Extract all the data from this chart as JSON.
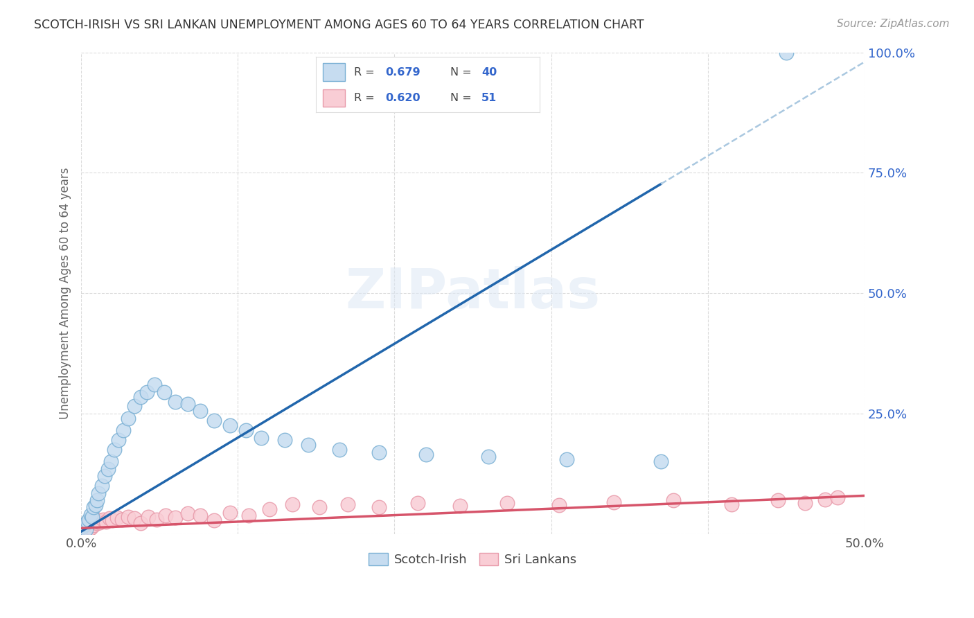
{
  "title": "SCOTCH-IRISH VS SRI LANKAN UNEMPLOYMENT AMONG AGES 60 TO 64 YEARS CORRELATION CHART",
  "source": "Source: ZipAtlas.com",
  "ylabel": "Unemployment Among Ages 60 to 64 years",
  "xlim": [
    0.0,
    0.5
  ],
  "ylim": [
    0.0,
    1.0
  ],
  "watermark": "ZIPatlas",
  "scotch_irish_R": 0.679,
  "scotch_irish_N": 40,
  "sri_lankan_R": 0.62,
  "sri_lankan_N": 51,
  "scotch_irish_x": [
    0.001,
    0.002,
    0.003,
    0.004,
    0.005,
    0.006,
    0.007,
    0.008,
    0.009,
    0.01,
    0.011,
    0.013,
    0.015,
    0.017,
    0.019,
    0.021,
    0.024,
    0.027,
    0.03,
    0.034,
    0.038,
    0.042,
    0.047,
    0.053,
    0.06,
    0.068,
    0.076,
    0.085,
    0.095,
    0.105,
    0.115,
    0.13,
    0.145,
    0.165,
    0.19,
    0.22,
    0.26,
    0.31,
    0.37,
    0.45
  ],
  "scotch_irish_y": [
    0.015,
    0.02,
    0.01,
    0.025,
    0.03,
    0.04,
    0.035,
    0.055,
    0.06,
    0.07,
    0.085,
    0.1,
    0.12,
    0.135,
    0.15,
    0.175,
    0.195,
    0.215,
    0.24,
    0.265,
    0.285,
    0.295,
    0.31,
    0.295,
    0.275,
    0.27,
    0.255,
    0.235,
    0.225,
    0.215,
    0.2,
    0.195,
    0.185,
    0.175,
    0.17,
    0.165,
    0.16,
    0.155,
    0.15,
    1.0
  ],
  "sri_lankan_x": [
    0.001,
    0.001,
    0.002,
    0.002,
    0.003,
    0.003,
    0.004,
    0.004,
    0.005,
    0.005,
    0.006,
    0.007,
    0.008,
    0.009,
    0.01,
    0.011,
    0.012,
    0.014,
    0.016,
    0.018,
    0.02,
    0.023,
    0.026,
    0.03,
    0.034,
    0.038,
    0.043,
    0.048,
    0.054,
    0.06,
    0.068,
    0.076,
    0.085,
    0.095,
    0.107,
    0.12,
    0.135,
    0.152,
    0.17,
    0.19,
    0.215,
    0.242,
    0.272,
    0.305,
    0.34,
    0.378,
    0.415,
    0.445,
    0.462,
    0.475,
    0.483
  ],
  "sri_lankan_y": [
    0.008,
    0.012,
    0.01,
    0.018,
    0.008,
    0.016,
    0.012,
    0.02,
    0.009,
    0.017,
    0.013,
    0.022,
    0.018,
    0.026,
    0.022,
    0.028,
    0.024,
    0.03,
    0.026,
    0.032,
    0.028,
    0.034,
    0.03,
    0.036,
    0.032,
    0.022,
    0.036,
    0.03,
    0.038,
    0.034,
    0.042,
    0.038,
    0.028,
    0.044,
    0.038,
    0.052,
    0.062,
    0.056,
    0.062,
    0.056,
    0.064,
    0.058,
    0.064,
    0.06,
    0.066,
    0.07,
    0.062,
    0.07,
    0.064,
    0.072,
    0.076
  ],
  "blue_scatter_face": "#c6dcf0",
  "blue_scatter_edge": "#7ab0d4",
  "pink_scatter_face": "#f9cdd5",
  "pink_scatter_edge": "#e89aaa",
  "blue_line_color": "#2166ac",
  "pink_line_color": "#d6546a",
  "dash_color": "#aac8e0",
  "background_color": "#ffffff",
  "grid_color": "#cccccc",
  "ytick_color": "#3366cc",
  "xtick_color": "#555555"
}
